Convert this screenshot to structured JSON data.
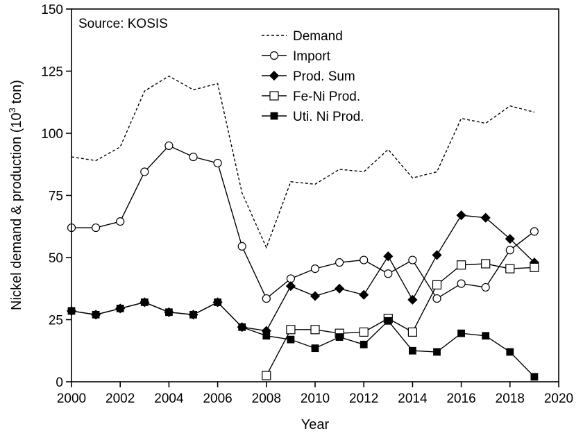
{
  "chart_data": {
    "type": "line",
    "title": "",
    "annotation": "Source: KOSIS",
    "xlabel": "Year",
    "ylabel_main": "Nickel demand & production (10",
    "ylabel_sup": "3",
    "ylabel_tail": " ton)",
    "xlim": [
      2000,
      2020
    ],
    "ylim": [
      0,
      150
    ],
    "x_ticks": [
      2000,
      2002,
      2004,
      2006,
      2008,
      2010,
      2012,
      2014,
      2016,
      2018,
      2020
    ],
    "y_ticks": [
      0,
      25,
      50,
      75,
      100,
      125,
      150
    ],
    "grid": false,
    "legend_position": "top-center",
    "series": [
      {
        "name": "Demand",
        "style": "dashed",
        "marker": "none",
        "x": [
          2000,
          2001,
          2002,
          2003,
          2004,
          2005,
          2006,
          2007,
          2008,
          2009,
          2010,
          2011,
          2012,
          2013,
          2014,
          2015,
          2016,
          2017,
          2018,
          2019
        ],
        "y": [
          90.5,
          89,
          94.5,
          117,
          123,
          117.5,
          120,
          76,
          54,
          80.5,
          79.5,
          85.5,
          84.5,
          93.5,
          82,
          84.5,
          106,
          104,
          111,
          108.5
        ]
      },
      {
        "name": "Import",
        "style": "solid",
        "marker": "open-circle",
        "x": [
          2000,
          2001,
          2002,
          2003,
          2004,
          2005,
          2006,
          2007,
          2008,
          2009,
          2010,
          2011,
          2012,
          2013,
          2014,
          2015,
          2016,
          2017,
          2018,
          2019
        ],
        "y": [
          62,
          62,
          64.5,
          84.5,
          95,
          90.5,
          88,
          54.5,
          33.5,
          41.5,
          45.5,
          48,
          49,
          43.5,
          49,
          33.5,
          39.5,
          38,
          53,
          60.5
        ]
      },
      {
        "name": "Prod. Sum",
        "style": "solid",
        "marker": "filled-diamond",
        "x": [
          2000,
          2001,
          2002,
          2003,
          2004,
          2005,
          2006,
          2007,
          2008,
          2009,
          2010,
          2011,
          2012,
          2013,
          2014,
          2015,
          2016,
          2017,
          2018,
          2019
        ],
        "y": [
          28.5,
          27,
          29.5,
          32,
          28,
          27,
          32,
          22,
          20.5,
          38.5,
          34.5,
          37.5,
          35,
          50.5,
          33,
          51,
          67,
          66,
          57.5,
          48
        ]
      },
      {
        "name": "Fe-Ni Prod.",
        "style": "solid",
        "marker": "open-square",
        "x": [
          2008,
          2009,
          2010,
          2011,
          2012,
          2013,
          2014,
          2015,
          2016,
          2017,
          2018,
          2019
        ],
        "y": [
          2.5,
          21,
          21,
          19.5,
          20,
          25.5,
          20,
          39,
          47,
          47.5,
          45.5,
          46
        ]
      },
      {
        "name": "Uti. Ni Prod.",
        "style": "solid",
        "marker": "filled-square",
        "x": [
          2000,
          2001,
          2002,
          2003,
          2004,
          2005,
          2006,
          2007,
          2008,
          2009,
          2010,
          2011,
          2012,
          2013,
          2014,
          2015,
          2016,
          2017,
          2018,
          2019
        ],
        "y": [
          28.5,
          27,
          29.5,
          32,
          28,
          27,
          32,
          22,
          18.5,
          17,
          13.5,
          18,
          15,
          24.5,
          12.5,
          12,
          19.5,
          18.5,
          12,
          2
        ]
      }
    ]
  }
}
